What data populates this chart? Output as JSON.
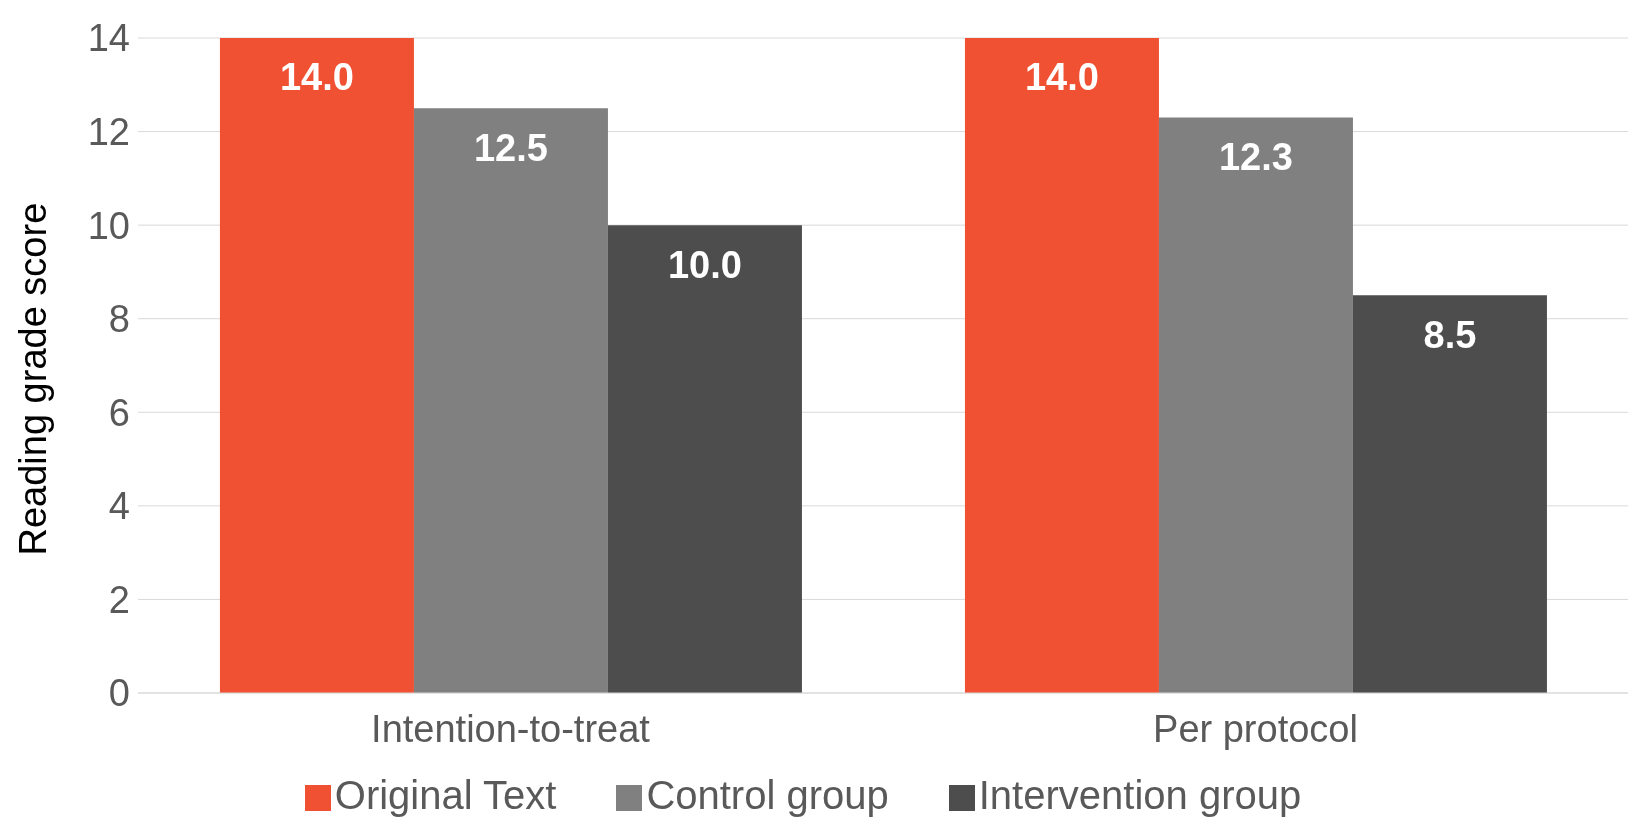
{
  "chart_data": {
    "type": "bar",
    "ylabel": "Reading grade score",
    "categories": [
      "Intention-to-treat",
      "Per protocol"
    ],
    "series": [
      {
        "name": "Original Text",
        "color": "#f05133",
        "values": [
          14.0,
          14.0
        ],
        "value_labels": [
          "14.0",
          "14.0"
        ]
      },
      {
        "name": "Control group",
        "color": "#808080",
        "values": [
          12.5,
          12.3
        ],
        "value_labels": [
          "12.5",
          "12.3"
        ]
      },
      {
        "name": "Intervention group",
        "color": "#4d4d4d",
        "values": [
          10.0,
          8.5
        ],
        "value_labels": [
          "10.0",
          "8.5"
        ]
      }
    ],
    "ylim": [
      0,
      14
    ],
    "yticks": [
      0,
      2,
      4,
      6,
      8,
      10,
      12,
      14
    ],
    "grid": "y",
    "legend": "bottom"
  }
}
